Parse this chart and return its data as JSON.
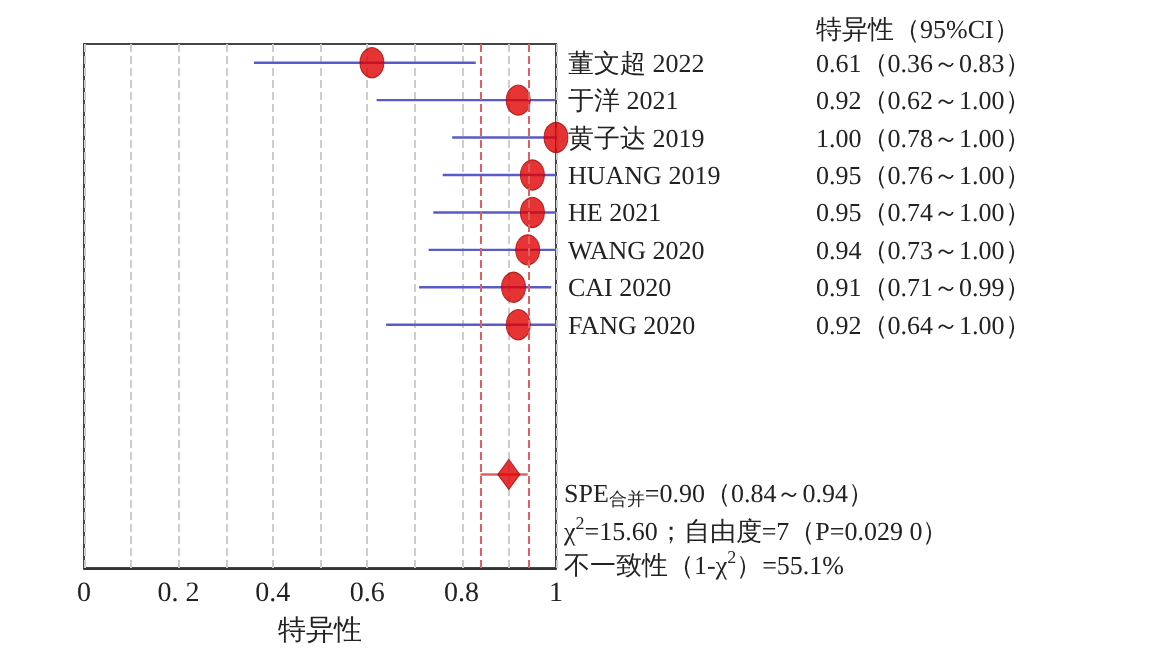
{
  "chart_data": {
    "type": "scatter",
    "orientation": "horizontal",
    "xlabel": "特异性",
    "categories": [
      "董文超 2022",
      "于洋 2021",
      "黄子达 2019",
      "HUANG 2019",
      "HE 2021",
      "WANG 2020",
      "CAI 2020",
      "FANG 2020",
      null,
      null,
      null,
      null,
      null,
      null
    ],
    "series": [
      {
        "color": "#e00000",
        "marker": "circle",
        "values": [
          0.61,
          0.92,
          1.0,
          0.95,
          0.95,
          0.94,
          0.91,
          0.92,
          null,
          null,
          null,
          null,
          null,
          null
        ],
        "errors": [
          [
            0.36,
            0.83
          ],
          [
            0.62,
            1.0
          ],
          [
            0.78,
            1.0
          ],
          [
            0.76,
            1.0
          ],
          [
            0.74,
            1.0
          ],
          [
            0.73,
            1.0
          ],
          [
            0.71,
            0.99
          ],
          [
            0.64,
            1.0
          ],
          null,
          null,
          null,
          null,
          null,
          null
        ],
        "value_labels": [
          "0.61（0.36～0.83）",
          "0.92（0.62～1.00）",
          "1.00（0.78～1.00）",
          "0.95（0.76～1.00）",
          "0.95（0.74～1.00）",
          "0.94（0.73～1.00）",
          "0.91（0.71～0.99）",
          "0.92（0.64～1.00）",
          null,
          null,
          null,
          null,
          null,
          null
        ]
      },
      {
        "color": "#e00000",
        "marker": "diamond",
        "values": [
          null,
          null,
          null,
          null,
          null,
          null,
          null,
          null,
          null,
          null,
          null,
          0.9,
          null,
          null
        ],
        "errors": [
          null,
          null,
          null,
          null,
          null,
          null,
          null,
          null,
          null,
          null,
          null,
          [
            0.84,
            0.94
          ],
          null,
          null
        ]
      }
    ],
    "xlim": [
      0,
      1
    ],
    "xticks": [
      0,
      {
        "value": 0.1,
        "label": null
      },
      {
        "value": 0.2,
        "label": "0. 2"
      },
      {
        "value": 0.3,
        "label": null
      },
      0.4,
      {
        "value": 0.5,
        "label": null
      },
      0.6,
      {
        "value": 0.7,
        "label": null
      },
      0.8,
      {
        "value": 0.9,
        "label": null
      },
      1
    ],
    "grid": "x",
    "ref_lines": [
      {
        "axis": "x",
        "value": 0.84,
        "color": "#e06060",
        "line_style": "dashed"
      },
      {
        "axis": "x",
        "value": 0.94,
        "color": "#e06060",
        "line_style": "dashed"
      }
    ],
    "annotations": [
      "特异性（95%CI）",
      "SPE$_{合并}$=0.90（0.84～0.94）",
      "χ$^{2}$=15.60；自由度=7（P=0.029 0）",
      "不一致性（1-χ$^{2}$）=55.1%"
    ]
  }
}
